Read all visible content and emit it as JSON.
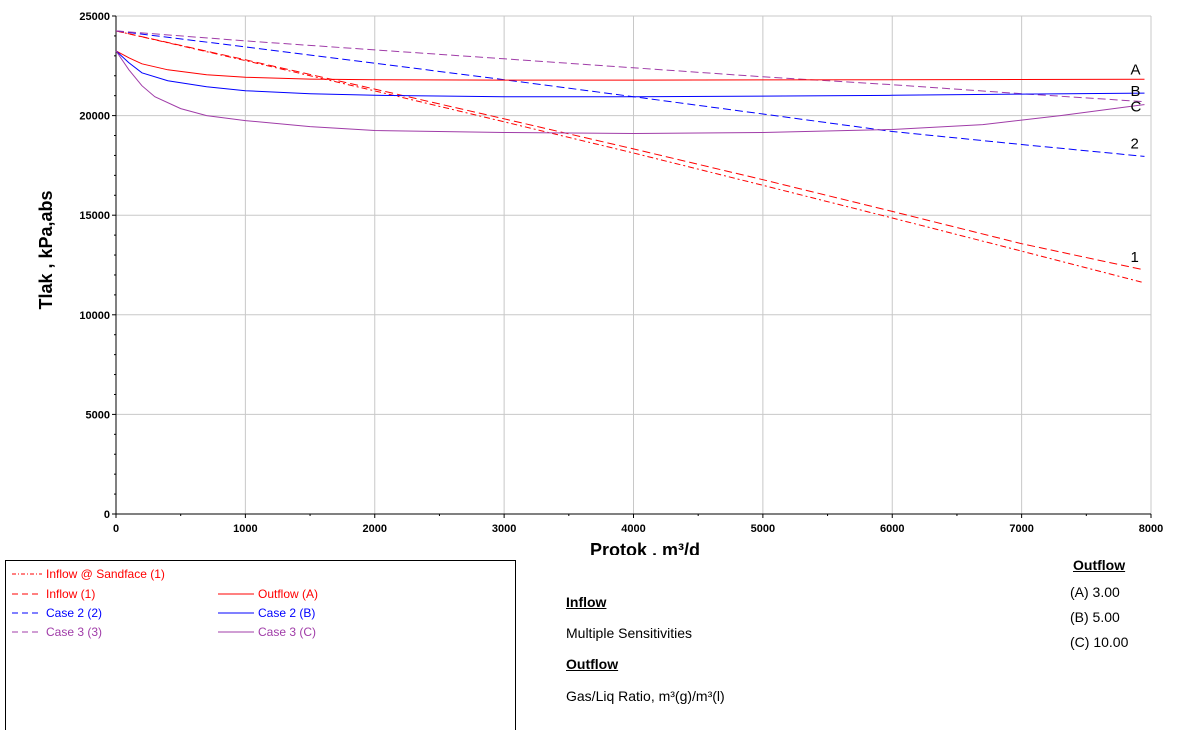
{
  "chart_data": {
    "type": "line",
    "title": "",
    "xlabel": "Protok , m³/d",
    "ylabel": "Tlak , kPa,abs",
    "xlim": [
      0,
      8000
    ],
    "ylim": [
      0,
      25000
    ],
    "x_ticks": [
      "0",
      "1000",
      "2000",
      "3000",
      "4000",
      "5000",
      "6000",
      "7000",
      "8000"
    ],
    "y_ticks": [
      "0",
      "5000",
      "10000",
      "15000",
      "20000",
      "25000"
    ],
    "grid": true,
    "series": [
      {
        "name": "Inflow @ Sandface (1)",
        "color": "#ff0000",
        "style": "dashdot",
        "end_label": "",
        "x": [
          0,
          1000,
          2000,
          3000,
          4000,
          5000,
          6000,
          7000,
          7950
        ],
        "y": [
          24250,
          22760,
          21240,
          19690,
          18120,
          16500,
          14860,
          13200,
          11600
        ]
      },
      {
        "name": "Inflow (1)",
        "color": "#ff0000",
        "style": "dashed",
        "end_label": "1",
        "x": [
          0,
          1000,
          2000,
          3000,
          4000,
          5000,
          6000,
          7000,
          7950
        ],
        "y": [
          24250,
          22800,
          21330,
          19840,
          18330,
          16780,
          15190,
          13570,
          12250
        ]
      },
      {
        "name": "Case 2 (2)",
        "color": "#0000ff",
        "style": "dashed",
        "end_label": "2",
        "x": [
          0,
          1000,
          2000,
          3000,
          4000,
          5000,
          6000,
          7000,
          7950
        ],
        "y": [
          24250,
          23450,
          22630,
          21800,
          20950,
          20080,
          19200,
          18550,
          17950
        ]
      },
      {
        "name": "Case 3 (3)",
        "color": "#a03ca8",
        "style": "dashed",
        "end_label": "",
        "x": [
          0,
          1000,
          2000,
          3000,
          4000,
          5000,
          6000,
          7000,
          7950
        ],
        "y": [
          24250,
          23750,
          23300,
          22850,
          22400,
          21950,
          21550,
          21100,
          20700
        ]
      },
      {
        "name": "Outflow (A)",
        "color": "#ff0000",
        "style": "solid",
        "end_label": "A",
        "x": [
          0,
          100,
          200,
          400,
          700,
          1000,
          1500,
          2000,
          3000,
          4000,
          5000,
          6000,
          7000,
          7950
        ],
        "y": [
          23250,
          22900,
          22600,
          22300,
          22050,
          21930,
          21830,
          21800,
          21780,
          21780,
          21790,
          21800,
          21810,
          21820
        ]
      },
      {
        "name": "Case 2 (B)",
        "color": "#0000ff",
        "style": "solid",
        "end_label": "B",
        "x": [
          0,
          100,
          200,
          400,
          700,
          1000,
          1500,
          2000,
          3000,
          4000,
          5000,
          6000,
          7000,
          7950
        ],
        "y": [
          23250,
          22650,
          22150,
          21750,
          21450,
          21250,
          21100,
          21020,
          20950,
          20950,
          20980,
          21020,
          21080,
          21130
        ]
      },
      {
        "name": "Case 3 (C)",
        "color": "#a03ca8",
        "style": "solid",
        "end_label": "C",
        "x": [
          0,
          100,
          200,
          300,
          500,
          700,
          1000,
          1500,
          2000,
          3000,
          4000,
          5000,
          6000,
          6700,
          7300,
          7950
        ],
        "y": [
          23250,
          22300,
          21500,
          20950,
          20350,
          20000,
          19750,
          19450,
          19250,
          19150,
          19100,
          19150,
          19300,
          19550,
          20000,
          20550
        ]
      }
    ]
  },
  "info": {
    "inflow_heading": "Inflow",
    "inflow_text": "Multiple Sensitivities",
    "outflow_heading": "Outflow",
    "outflow_text": "Gas/Liq Ratio,  m³(g)/m³(l)",
    "outflow_values_heading": "Outflow",
    "outflow_values": [
      "(A)  3.00",
      "(B)  5.00",
      "(C)  10.00"
    ]
  }
}
